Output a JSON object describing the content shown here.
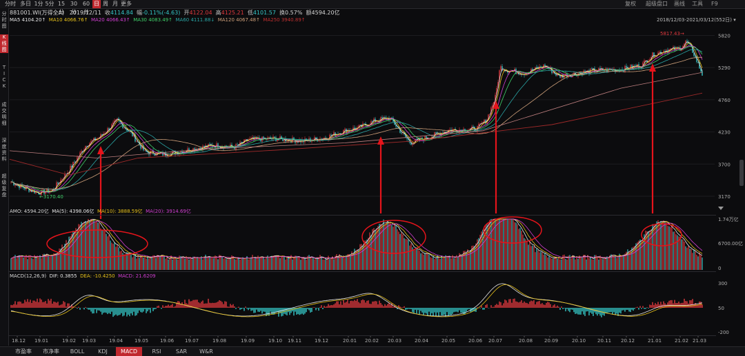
{
  "topbar": {
    "tabs": [
      "分时",
      "多日",
      "1分",
      "5分",
      "15分",
      "30分",
      "60分",
      "日",
      "周",
      "月",
      "更多"
    ],
    "active": "日",
    "right_tabs": [
      "复权",
      "超级盘口",
      "画线",
      "工具",
      "F9"
    ]
  },
  "info": {
    "code_name": "881001.WI(万得全A)",
    "date": "2019/12/11",
    "close_label": "收",
    "close": "4114.84",
    "change_label": "幅",
    "change": "-0.11%(-4.63)",
    "open_label": "开",
    "open": "4122.04",
    "high_label": "高",
    "high": "4125.21",
    "low_label": "低",
    "low": "4101.57",
    "turnover_label": "换",
    "turnover": "0.57%",
    "amount_label": "额",
    "amount": "4594.20亿"
  },
  "ma": {
    "ma5": "MA5 4104.20↑",
    "ma10": "MA10 4066.76↑",
    "ma20": "MA20 4066.43↑",
    "ma30": "MA30 4083.49↑",
    "ma60": "MA60 4111.88↓",
    "ma120": "MA120 4067.48↑",
    "ma250": "MA250 3940.89↑"
  },
  "sidebar": {
    "items": [
      "分时图",
      "K线图",
      "TICK",
      "成交明细",
      "深度资料",
      "超级复盘"
    ],
    "active_index": 1
  },
  "range_label": "2018/12/03-2021/03/12(552日)",
  "price_axis": [
    "5820",
    "5290",
    "4760",
    "4230",
    "3700",
    "3170"
  ],
  "annotations": {
    "high": "5817.43",
    "low": "3170.40"
  },
  "vol": {
    "amo": "AMO: 4594.20亿",
    "ma5": "MA(5): 4398.06亿",
    "ma10": "MA(10): 3888.59亿",
    "ma20": "MA(20): 3914.69亿",
    "axis": [
      "1.74万亿",
      "6700.00亿",
      "0"
    ]
  },
  "macd": {
    "label": "MACD(12,26,9)",
    "dif": "DIF: 0.3855",
    "dea": "DEA: -10.4250",
    "macd": "MACD: 21.6209",
    "axis": [
      "300",
      "50",
      "-200"
    ]
  },
  "x_axis": [
    "18.12",
    "19.01",
    "19.02",
    "19.03",
    "19.04",
    "19.05",
    "19.06",
    "19.07",
    "19.08",
    "19.09",
    "19.10",
    "19.11",
    "19.12",
    "20.01",
    "20.02",
    "20.03",
    "20.04",
    "20.05",
    "20.06",
    "20.07",
    "20.08",
    "20.09",
    "20.10",
    "20.11",
    "20.12",
    "21.01",
    "21.02",
    "21.03"
  ],
  "bottom_tabs": [
    "市盈率",
    "市净率",
    "BOLL",
    "KDJ",
    "MACD",
    "RSI",
    "SAR",
    "W&R"
  ],
  "bottom_active": "MACD",
  "colors": {
    "up": "#e0393e",
    "down": "#35c6c6",
    "ma5": "#e8e8e8",
    "ma10": "#e8c21a",
    "ma20": "#d23fd2",
    "ma30": "#3fd26a",
    "ma60": "#2aa6a6",
    "ma250": "#a02a2a",
    "accent": "#c0282e"
  }
}
